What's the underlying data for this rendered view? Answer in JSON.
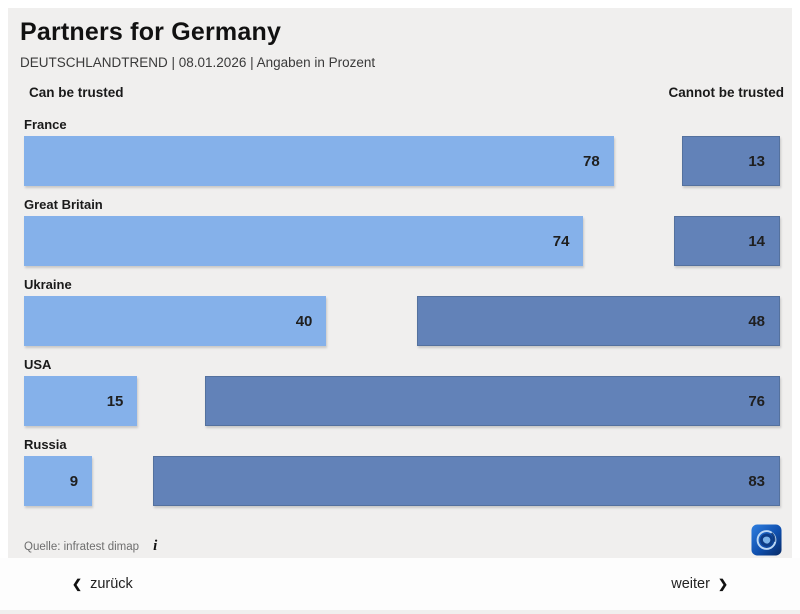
{
  "header": {
    "title": "Partners for Germany",
    "subtitle": "DEUTSCHLANDTREND | 08.01.2026 | Angaben in Prozent"
  },
  "columns": {
    "left_header": "Can be trusted",
    "right_header": "Cannot be trusted"
  },
  "chart_data": {
    "type": "bar",
    "orientation": "horizontal-paired-diverging",
    "title": "Partners for Germany",
    "subtitle": "DEUTSCHLANDTREND | 08.01.2026 | Angaben in Prozent",
    "unit": "percent",
    "xlim": [
      0,
      100
    ],
    "categories": [
      "France",
      "Great Britain",
      "Ukraine",
      "USA",
      "Russia"
    ],
    "series": [
      {
        "name": "Can be trusted",
        "color": "#85b1ea",
        "values": [
          78,
          74,
          40,
          15,
          9
        ]
      },
      {
        "name": "Cannot be trusted",
        "color": "#6282b8",
        "values": [
          13,
          14,
          48,
          76,
          83
        ]
      }
    ],
    "legend_position": "top-as-column-headers",
    "grid": false
  },
  "source": {
    "label": "Quelle: infratest dimap",
    "info_icon_glyph": "i"
  },
  "logo": {
    "name": "tagesschau-globe"
  },
  "footer": {
    "back_label": "zurück",
    "next_label": "weiter",
    "back_chevron": "❮",
    "next_chevron": "❯"
  },
  "colors": {
    "panel_background": "#f0efee",
    "page_background": "#ffffff",
    "trust_bar": "#85b1ea",
    "distrust_bar": "#6282b8",
    "text_primary": "#1a1a1a",
    "text_muted": "#6e6e6e"
  }
}
